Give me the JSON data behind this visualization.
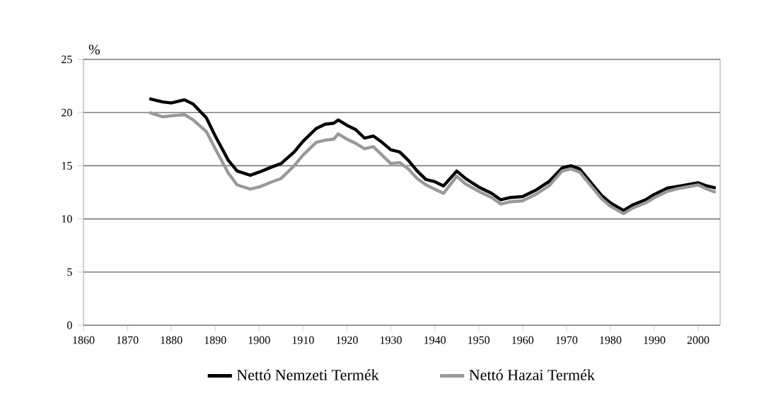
{
  "chart_data": {
    "type": "line",
    "ylabel": "%",
    "xlim": [
      1860,
      2005
    ],
    "ylim": [
      0,
      25
    ],
    "xticks": [
      1860,
      1870,
      1880,
      1890,
      1900,
      1910,
      1920,
      1930,
      1940,
      1950,
      1960,
      1970,
      1980,
      1990,
      2000
    ],
    "yticks": [
      0,
      5,
      10,
      15,
      20,
      25
    ],
    "grid": "y",
    "legend": "bottom",
    "marker": "none",
    "line_style": "solid",
    "x": [
      1875,
      1878,
      1880,
      1883,
      1885,
      1888,
      1890,
      1893,
      1895,
      1898,
      1900,
      1903,
      1905,
      1908,
      1910,
      1913,
      1915,
      1917,
      1918,
      1920,
      1922,
      1924,
      1926,
      1928,
      1930,
      1932,
      1934,
      1936,
      1938,
      1940,
      1942,
      1945,
      1947,
      1950,
      1953,
      1955,
      1957,
      1960,
      1963,
      1966,
      1969,
      1971,
      1973,
      1975,
      1978,
      1980,
      1983,
      1985,
      1988,
      1990,
      1993,
      1996,
      2000,
      2002,
      2004
    ],
    "series": [
      {
        "name": "Nettó Nemzeti Termék",
        "color": "#000000",
        "values": [
          21.3,
          21.0,
          20.9,
          21.2,
          20.8,
          19.5,
          17.8,
          15.5,
          14.5,
          14.1,
          14.4,
          14.9,
          15.2,
          16.3,
          17.3,
          18.5,
          18.9,
          19.0,
          19.3,
          18.8,
          18.4,
          17.6,
          17.8,
          17.2,
          16.5,
          16.3,
          15.5,
          14.5,
          13.7,
          13.5,
          13.1,
          14.5,
          13.8,
          13.0,
          12.4,
          11.8,
          12.0,
          12.1,
          12.7,
          13.5,
          14.8,
          15.0,
          14.7,
          13.7,
          12.2,
          11.5,
          10.8,
          11.3,
          11.8,
          12.3,
          12.9,
          13.1,
          13.4,
          13.1,
          12.9
        ]
      },
      {
        "name": "Nettó Hazai Termék",
        "color": "#999999",
        "values": [
          20.0,
          19.6,
          19.7,
          19.8,
          19.3,
          18.2,
          16.6,
          14.3,
          13.2,
          12.8,
          13.0,
          13.5,
          13.8,
          15.0,
          16.0,
          17.2,
          17.4,
          17.5,
          18.0,
          17.5,
          17.1,
          16.6,
          16.8,
          16.0,
          15.2,
          15.3,
          14.7,
          13.8,
          13.2,
          12.8,
          12.4,
          14.0,
          13.3,
          12.6,
          12.0,
          11.4,
          11.6,
          11.7,
          12.3,
          13.1,
          14.5,
          14.7,
          14.4,
          13.4,
          11.9,
          11.2,
          10.5,
          11.0,
          11.5,
          12.0,
          12.6,
          12.9,
          13.2,
          12.8,
          12.5
        ]
      }
    ]
  }
}
